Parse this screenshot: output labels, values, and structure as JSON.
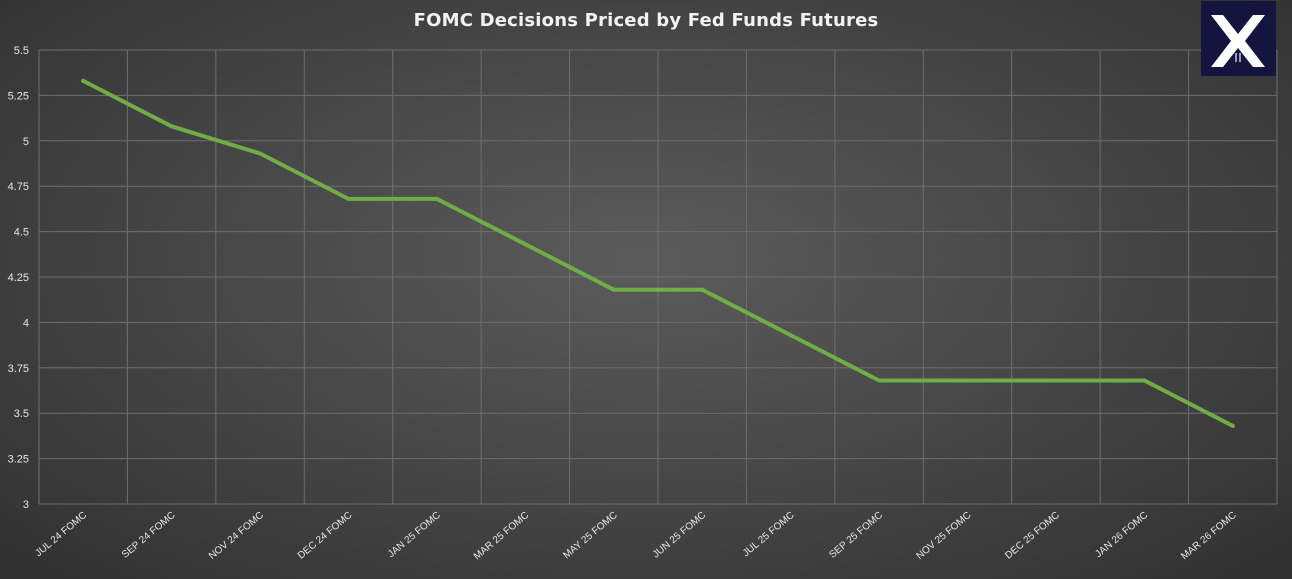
{
  "chart_data": {
    "type": "line",
    "title": "FOMC Decisions Priced by Fed Funds Futures",
    "xlabel": "",
    "ylabel": "",
    "categories": [
      "JUL 24 FOMC",
      "SEP 24 FOMC",
      "NOV 24 FOMC",
      "DEC 24 FOMC",
      "JAN 25 FOMC",
      "MAR 25 FOMC",
      "MAY 25 FOMC",
      "JUN 25 FOMC",
      "JUL 25 FOMC",
      "SEP 25 FOMC",
      "NOV 25 FOMC",
      "DEC 25 FOMC",
      "JAN 26 FOMC",
      "MAR 26 FOMC"
    ],
    "series": [
      {
        "values": [
          5.33,
          5.08,
          4.93,
          4.68,
          4.68,
          4.43,
          4.18,
          4.18,
          3.93,
          3.68,
          3.68,
          3.68,
          3.68,
          3.43
        ],
        "color": "#70ad47"
      }
    ],
    "ylim": [
      3,
      5.5
    ],
    "yticks": [
      "5.5",
      "5.25",
      "5",
      "4.75",
      "4.5",
      "4.25",
      "4",
      "3.75",
      "3.5",
      "3.25",
      "3"
    ],
    "grid": true,
    "legend": "none"
  },
  "logo": {
    "name": "logo-icon",
    "background": "#14143f"
  }
}
